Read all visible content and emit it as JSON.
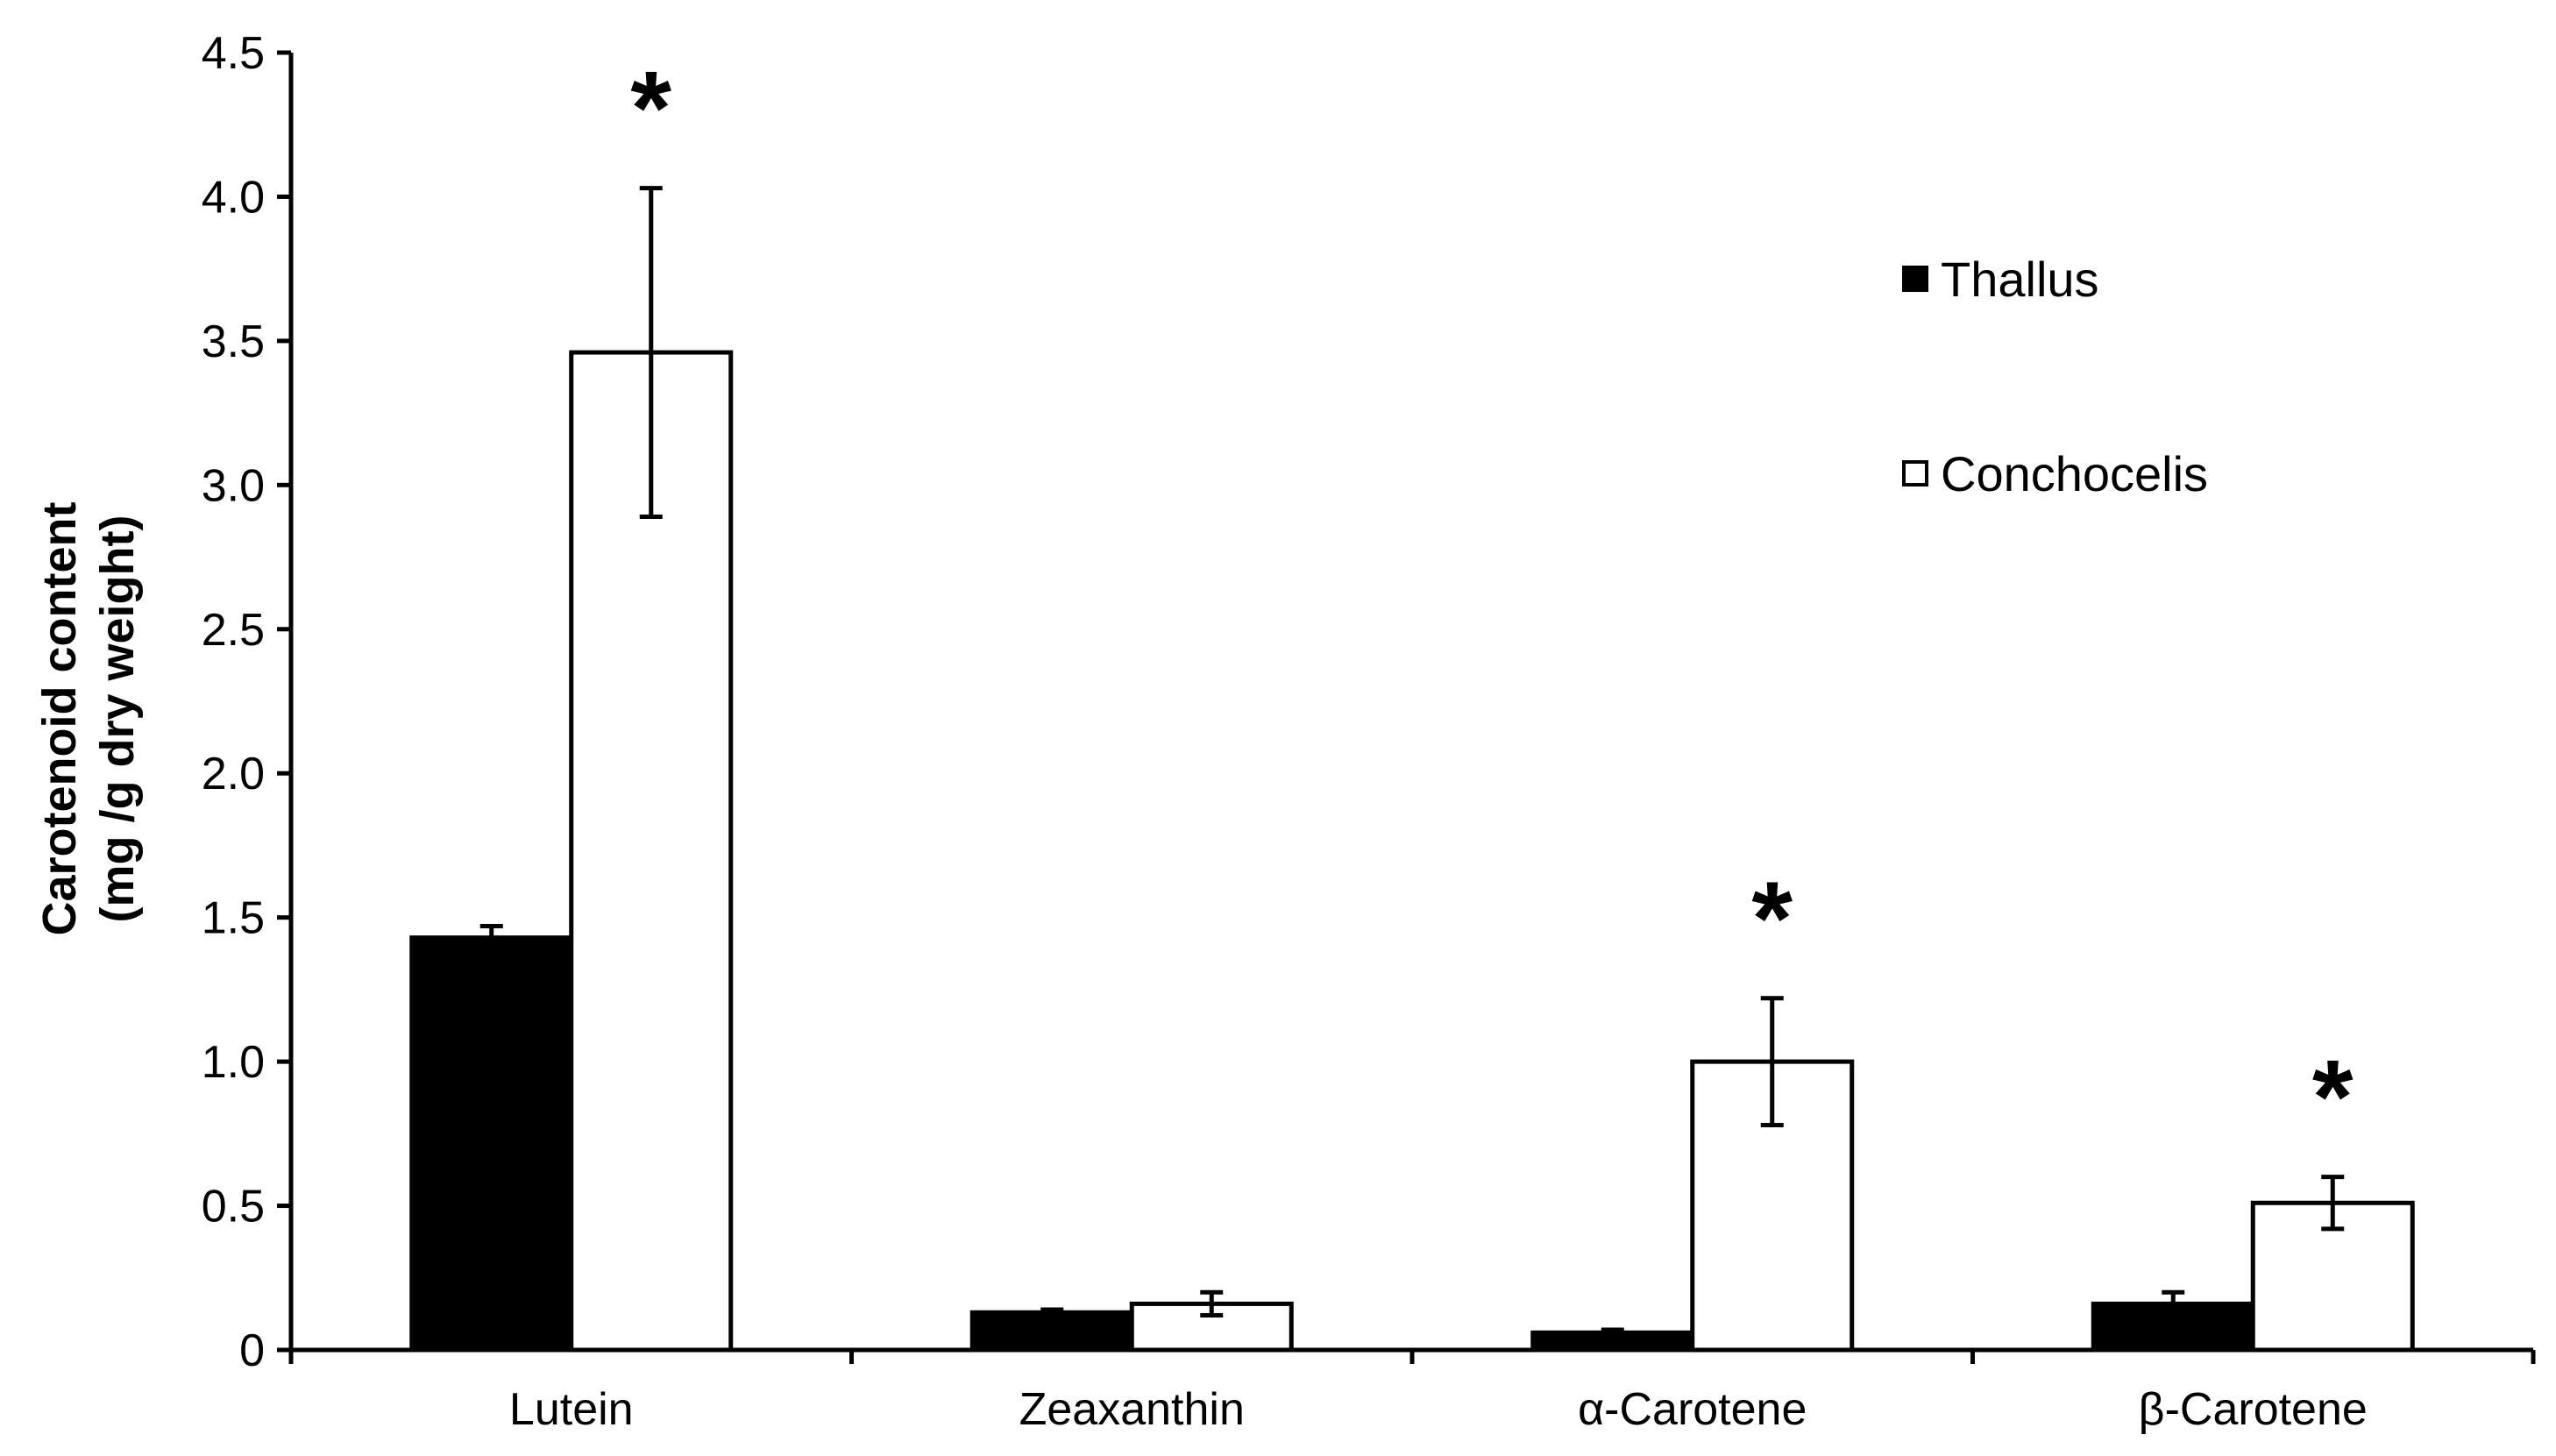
{
  "chart_data": {
    "type": "bar",
    "title": "",
    "xlabel": "",
    "ylabel_lines": [
      "Carotenoid content",
      "(mg /g dry weight)"
    ],
    "ylim": [
      0,
      4.5
    ],
    "yticks": [
      0,
      0.5,
      1.0,
      1.5,
      2.0,
      2.5,
      3.0,
      3.5,
      4.0,
      4.5
    ],
    "ytick_labels": [
      "0",
      "0.5",
      "1.0",
      "1.5",
      "2.0",
      "2.5",
      "3.0",
      "3.5",
      "4.0",
      "4.5"
    ],
    "categories": [
      "Lutein",
      "Zeaxanthin",
      "α-Carotene",
      "β-Carotene"
    ],
    "series": [
      {
        "name": "Thallus",
        "fill": "#000000",
        "values": [
          1.43,
          0.13,
          0.06,
          0.16
        ],
        "errors": [
          0.04,
          0.01,
          0.01,
          0.04
        ]
      },
      {
        "name": "Conchocelis",
        "fill": "#ffffff",
        "values": [
          3.46,
          0.16,
          1.0,
          0.51
        ],
        "errors": [
          0.57,
          0.04,
          0.22,
          0.09
        ]
      }
    ],
    "significance": [
      {
        "category": "Lutein",
        "series": "Conchocelis",
        "mark": "*"
      },
      {
        "category": "α-Carotene",
        "series": "Conchocelis",
        "mark": "*"
      },
      {
        "category": "β-Carotene",
        "series": "Conchocelis",
        "mark": "*"
      }
    ],
    "grid": false,
    "legend_position": "top-right"
  }
}
